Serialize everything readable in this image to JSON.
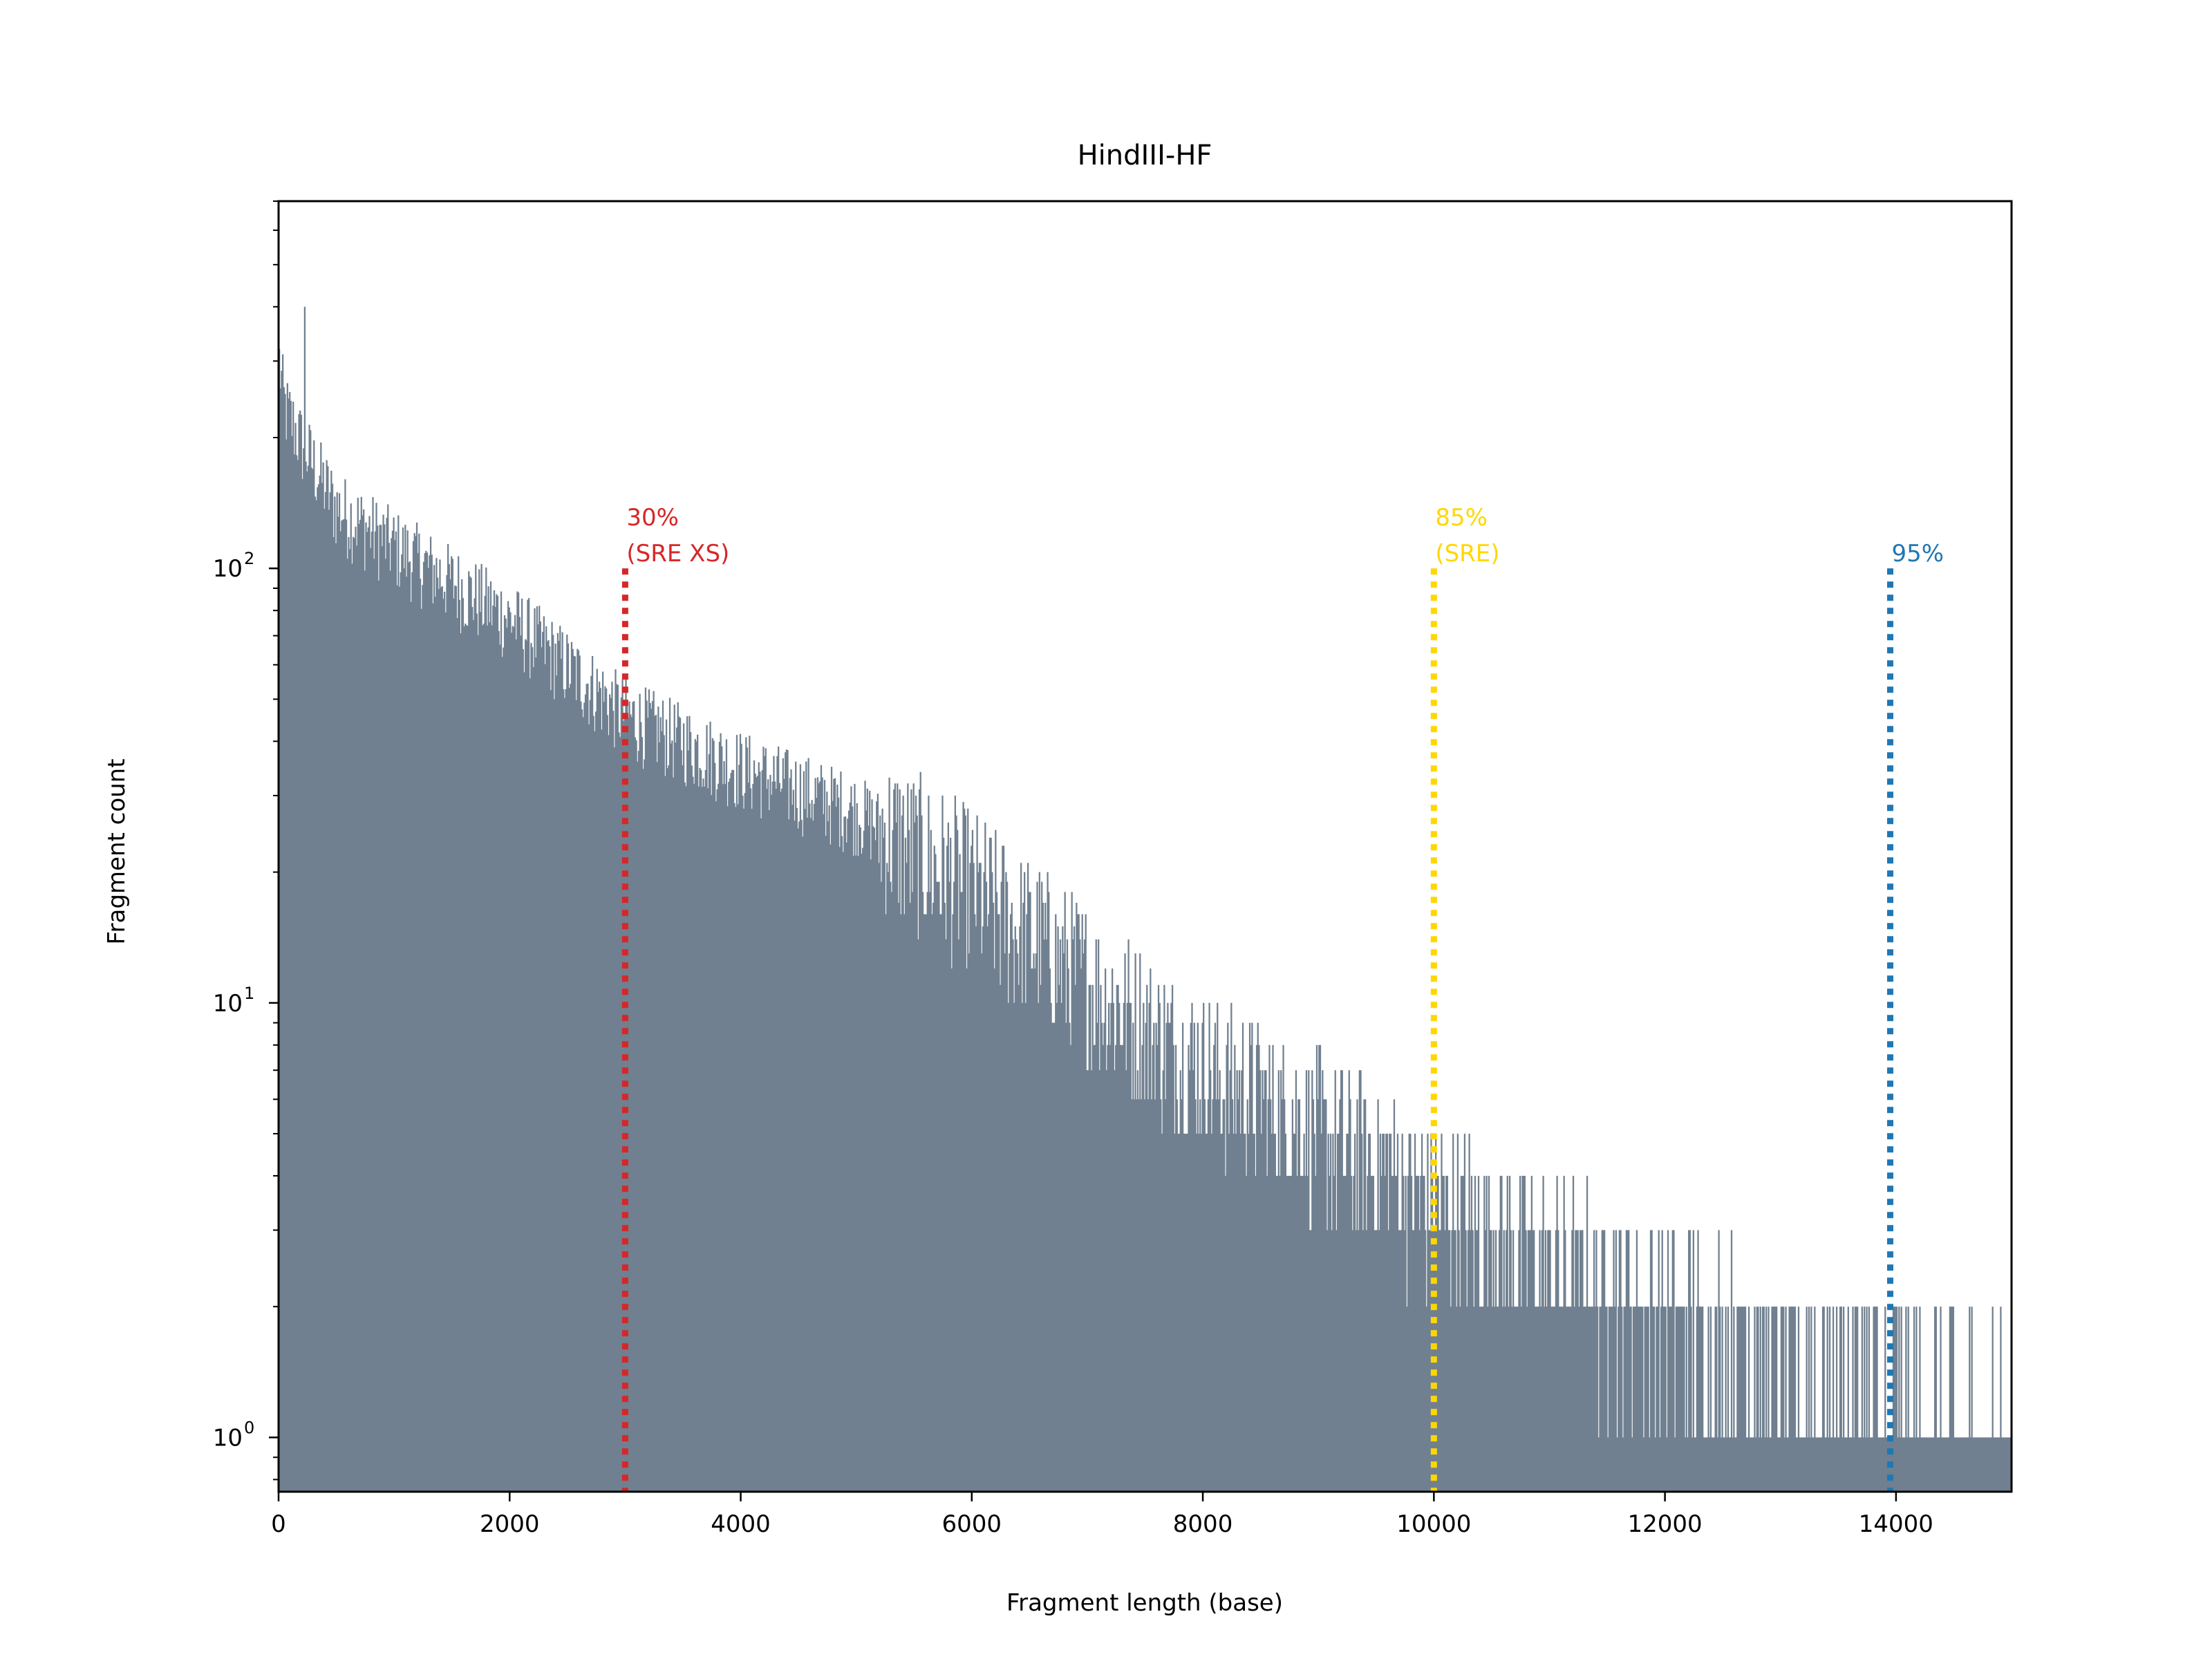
{
  "chart_data": {
    "type": "bar",
    "title": "HindIII-HF",
    "xlabel": "Fragment length (base)",
    "ylabel": "Fragment count",
    "xlim": [
      0,
      15000
    ],
    "ylim": [
      0.75,
      700
    ],
    "yscale": "log",
    "grid": false,
    "bar_color": "#708090",
    "x_ticks": [
      "0",
      "2000",
      "4000",
      "6000",
      "8000",
      "10000",
      "12000",
      "14000"
    ],
    "x_tick_values": [
      0,
      2000,
      4000,
      6000,
      8000,
      10000,
      12000,
      14000
    ],
    "y_ticks": [
      {
        "value": 1,
        "base": "10",
        "exp": "0"
      },
      {
        "value": 10,
        "base": "10",
        "exp": "1"
      },
      {
        "value": 100,
        "base": "10",
        "exp": "2"
      }
    ],
    "histogram_profile": {
      "bin_width": 10,
      "x": [
        0,
        50,
        200,
        500,
        1000,
        2000,
        3000,
        4000,
        5000,
        6000,
        7000,
        8000,
        9000,
        10000,
        11000,
        12000,
        13000,
        14000,
        15000
      ],
      "count": [
        300,
        230,
        190,
        135,
        110,
        75,
        45,
        34,
        27,
        18,
        11,
        7,
        5,
        3.5,
        2.5,
        2,
        1.5,
        1.2,
        1.1
      ],
      "peak_x": 220,
      "peak_count": 400
    },
    "markers": [
      {
        "x": 3000,
        "lines": [
          "30%",
          "(SRE XS)"
        ],
        "color": "#d62728"
      },
      {
        "x": 10000,
        "lines": [
          "85%",
          "(SRE)"
        ],
        "color": "#ffd700"
      },
      {
        "x": 13950,
        "lines": [
          "95%"
        ],
        "color": "#1f77b4"
      }
    ],
    "marker_top_value": 100
  }
}
